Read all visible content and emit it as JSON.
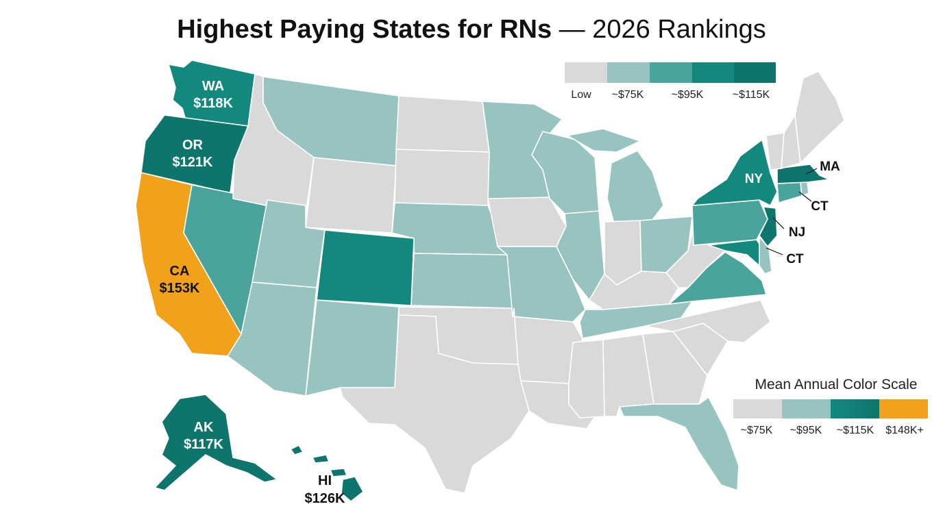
{
  "title": {
    "bold": "Highest Paying States for RNs",
    "light": " — 2026 Rankings"
  },
  "colors": {
    "low": "#d9d9d9",
    "tier75": "#97c4c1",
    "tier95": "#4aa49c",
    "tier115": "#13897e",
    "tierTop": "#0e756d",
    "tier148": "#f2a11b"
  },
  "top_legend": {
    "labels": [
      "Low",
      "~$75K",
      "~$95K",
      "~$115K"
    ]
  },
  "bottom_legend": {
    "title": "Mean Annual Color Scale",
    "labels": [
      "~$75K",
      "~$95K",
      "~$115K",
      "$148K+"
    ]
  },
  "labels": {
    "wa": {
      "code": "WA",
      "value": "$118K"
    },
    "or": {
      "code": "OR",
      "value": "$121K"
    },
    "ca": {
      "code": "CA",
      "value": "$153K"
    },
    "ak": {
      "code": "AK",
      "value": "$117K"
    },
    "hi": {
      "code": "HI",
      "value": "$126K"
    },
    "ny": {
      "code": "NY"
    },
    "ma": {
      "code": "MA"
    },
    "ct1": {
      "code": "CT"
    },
    "nj": {
      "code": "NJ"
    },
    "ct2": {
      "code": "CT"
    }
  }
}
